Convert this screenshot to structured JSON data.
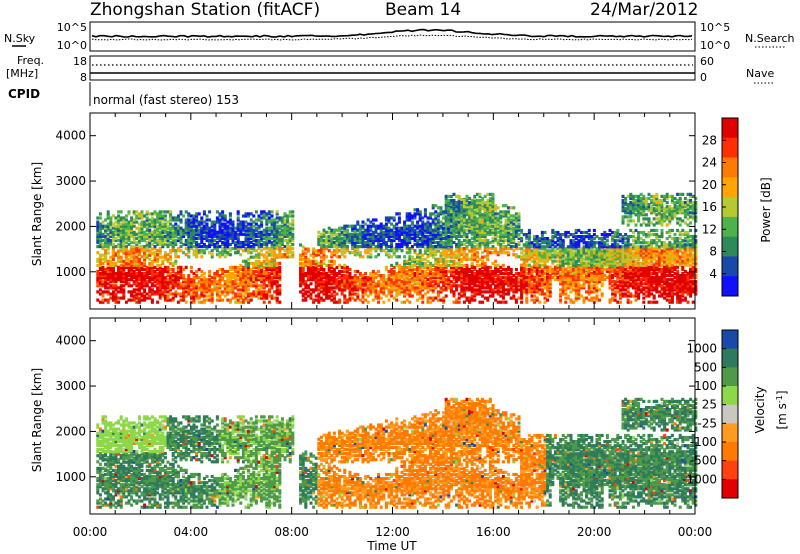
{
  "header": {
    "station": "Zhongshan Station (fitACF)",
    "beam": "Beam 14",
    "date": "24/Mar/2012",
    "cpid_label": "CPID",
    "cpid_value": "normal (fast stereo) 153"
  },
  "top_panels": {
    "nsky_label": "N.Sky",
    "nsearch_label": "N.Search",
    "noise_ticks": [
      "10^5",
      "10^0"
    ],
    "freq_label_1": "Freq.",
    "freq_label_2": "[MHz]",
    "freq_ticks": [
      "18",
      "8"
    ],
    "nave_label": "Nave",
    "nave_ticks": [
      "60",
      "0"
    ]
  },
  "colors": {
    "power_scale": [
      "#1010ff",
      "#1a4aa8",
      "#2f8a5a",
      "#4db24a",
      "#b8c832",
      "#ffa500",
      "#ff7a00",
      "#ff3000",
      "#e00000"
    ],
    "velocity_scale": [
      "#1a4aa8",
      "#2f7a5c",
      "#4e9a48",
      "#8cd848",
      "#c8c8c0",
      "#ff9c20",
      "#ff7a00",
      "#ff4010",
      "#e00000"
    ]
  },
  "chart_data": [
    {
      "type": "heatmap",
      "title": "Power",
      "xlabel": "",
      "ylabel": "Slant Range [km]",
      "colorbar_label": "Power [dB]",
      "colorbar_ticks": [
        "28",
        "24",
        "20",
        "16",
        "12",
        "8",
        "4"
      ],
      "colorbar_range": [
        0,
        32
      ],
      "ylim": [
        180,
        4500
      ],
      "yticks": [
        "4000",
        "3000",
        "2000",
        "1000"
      ],
      "xlim": [
        0,
        24
      ],
      "xticks": [
        "00:00",
        "04:00",
        "08:00",
        "12:00",
        "16:00",
        "20:00",
        "00:00"
      ]
    },
    {
      "type": "heatmap",
      "title": "Velocity",
      "xlabel": "Time UT",
      "ylabel": "Slant Range [km]",
      "colorbar_label": "Velocity",
      "colorbar_units": "[m s",
      "colorbar_units_exp": "-1",
      "colorbar_units_close": "]",
      "colorbar_ticks": [
        "1000",
        "500",
        "100",
        "25",
        "-25",
        "-100",
        "-500",
        "-1000"
      ],
      "ylim": [
        180,
        4500
      ],
      "yticks": [
        "4000",
        "3000",
        "2000",
        "1000"
      ],
      "xlim": [
        0,
        24
      ],
      "xticks": [
        "00:00",
        "04:00",
        "08:00",
        "12:00",
        "16:00",
        "20:00",
        "00:00"
      ]
    }
  ]
}
